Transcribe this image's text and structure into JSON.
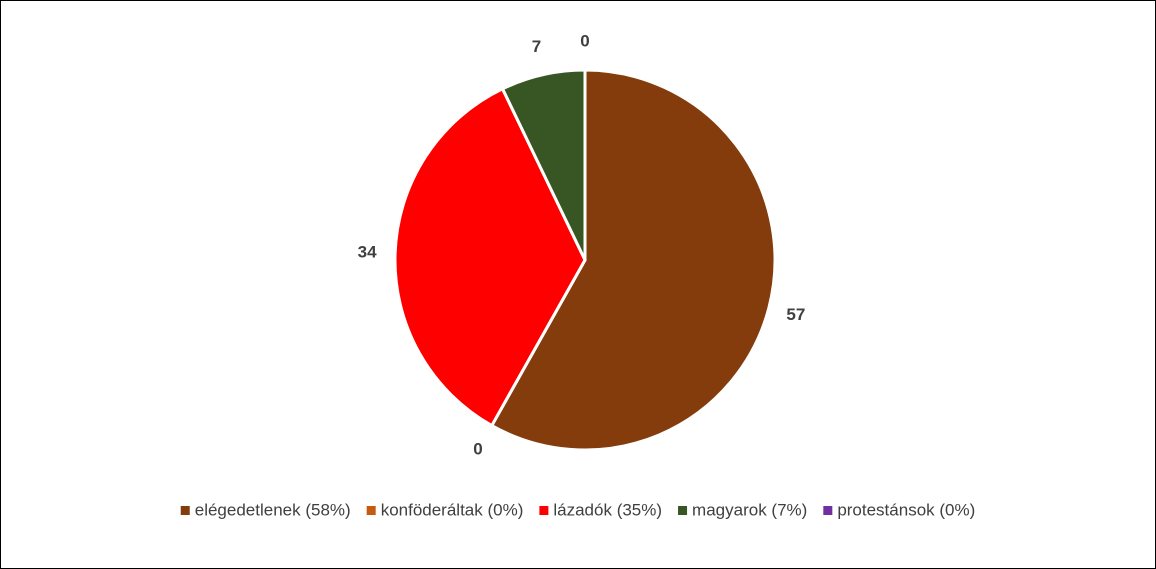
{
  "chart_data": {
    "type": "pie",
    "categories": [
      "elégedetlenek (58%)",
      "konföderáltak (0%)",
      "lázadók (35%)",
      "magyarok (7%)",
      "protestánsok (0%)"
    ],
    "values": [
      57,
      0,
      34,
      7,
      0
    ],
    "colors": [
      "#843C0C",
      "#C55A11",
      "#FF0000",
      "#375623",
      "#7030A0"
    ],
    "legend": "bottom"
  }
}
